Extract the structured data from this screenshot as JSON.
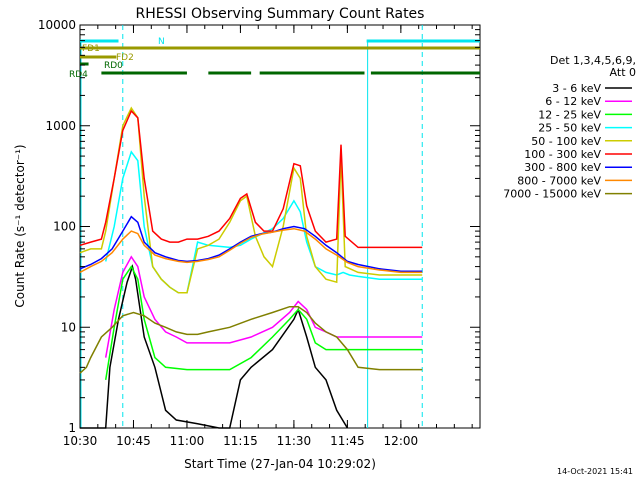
{
  "chart_data": {
    "type": "line",
    "title": "RHESSI Observing Summary Count Rates",
    "xlabel": "Start Time (27-Jan-04 10:29:02)",
    "ylabel": "Count Rate (s⁻¹ detector⁻¹)",
    "yscale": "log",
    "ylim": [
      1,
      10000
    ],
    "xlim_minutes": [
      10.5,
      12.37
    ],
    "x_ticks": [
      {
        "t": 10.5,
        "label": "10:30"
      },
      {
        "t": 10.75,
        "label": "10:45"
      },
      {
        "t": 11.0,
        "label": "11:00"
      },
      {
        "t": 11.25,
        "label": "11:15"
      },
      {
        "t": 11.5,
        "label": "11:30"
      },
      {
        "t": 11.75,
        "label": "11:45"
      },
      {
        "t": 12.0,
        "label": "12:00"
      }
    ],
    "y_ticks": [
      {
        "v": 1,
        "label": "1"
      },
      {
        "v": 10,
        "label": "10"
      },
      {
        "v": 100,
        "label": "100"
      },
      {
        "v": 1000,
        "label": "1000"
      },
      {
        "v": 10000,
        "label": "10000"
      }
    ],
    "legend_title": [
      "Det 1,3,4,5,6,9,",
      "Att 0"
    ],
    "legend_position": "right",
    "series": [
      {
        "name": "3 - 6 keV",
        "color": "#000000",
        "points": [
          [
            10.5,
            1
          ],
          [
            10.62,
            1
          ],
          [
            10.64,
            4
          ],
          [
            10.68,
            12
          ],
          [
            10.72,
            28
          ],
          [
            10.745,
            40
          ],
          [
            10.76,
            30
          ],
          [
            10.8,
            8
          ],
          [
            10.85,
            4
          ],
          [
            10.9,
            1.5
          ],
          [
            10.95,
            1.2
          ],
          [
            11.05,
            1.1
          ],
          [
            11.15,
            1
          ],
          [
            11.2,
            1
          ],
          [
            11.25,
            3
          ],
          [
            11.3,
            4
          ],
          [
            11.4,
            6
          ],
          [
            11.5,
            12
          ],
          [
            11.52,
            15
          ],
          [
            11.56,
            8
          ],
          [
            11.6,
            4
          ],
          [
            11.65,
            3
          ],
          [
            11.7,
            1.5
          ],
          [
            11.75,
            1
          ]
        ]
      },
      {
        "name": "6 - 12 keV",
        "color": "#ff00ff",
        "points": [
          [
            10.62,
            5
          ],
          [
            10.66,
            15
          ],
          [
            10.7,
            35
          ],
          [
            10.74,
            50
          ],
          [
            10.77,
            40
          ],
          [
            10.8,
            20
          ],
          [
            10.85,
            12
          ],
          [
            10.9,
            9
          ],
          [
            10.95,
            8
          ],
          [
            11.0,
            7
          ],
          [
            11.1,
            7
          ],
          [
            11.2,
            7
          ],
          [
            11.3,
            8
          ],
          [
            11.4,
            10
          ],
          [
            11.48,
            14
          ],
          [
            11.52,
            18
          ],
          [
            11.56,
            15
          ],
          [
            11.6,
            10
          ],
          [
            11.65,
            9
          ],
          [
            11.7,
            8
          ],
          [
            11.8,
            8
          ],
          [
            11.9,
            8
          ],
          [
            12.0,
            8
          ],
          [
            12.1,
            8
          ]
        ]
      },
      {
        "name": "12 - 25 keV",
        "color": "#00ff00",
        "points": [
          [
            10.62,
            3
          ],
          [
            10.66,
            10
          ],
          [
            10.7,
            30
          ],
          [
            10.74,
            40
          ],
          [
            10.77,
            30
          ],
          [
            10.8,
            12
          ],
          [
            10.85,
            5
          ],
          [
            10.9,
            4
          ],
          [
            11.0,
            3.8
          ],
          [
            11.1,
            3.8
          ],
          [
            11.2,
            3.8
          ],
          [
            11.3,
            5
          ],
          [
            11.4,
            8
          ],
          [
            11.48,
            12
          ],
          [
            11.52,
            15
          ],
          [
            11.56,
            12
          ],
          [
            11.6,
            7
          ],
          [
            11.65,
            6
          ],
          [
            11.7,
            6
          ],
          [
            11.8,
            6
          ],
          [
            11.9,
            6
          ],
          [
            12.0,
            6
          ],
          [
            12.1,
            6
          ]
        ]
      },
      {
        "name": "25 - 50 keV",
        "color": "#00ffff",
        "points": [
          [
            10.62,
            45
          ],
          [
            10.66,
            100
          ],
          [
            10.7,
            300
          ],
          [
            10.74,
            550
          ],
          [
            10.77,
            450
          ],
          [
            10.8,
            100
          ],
          [
            10.84,
            40
          ],
          [
            10.88,
            30
          ],
          [
            10.92,
            25
          ],
          [
            10.96,
            22
          ],
          [
            11.0,
            22
          ],
          [
            11.05,
            70
          ],
          [
            11.1,
            65
          ],
          [
            11.2,
            62
          ],
          [
            11.25,
            65
          ],
          [
            11.3,
            75
          ],
          [
            11.4,
            95
          ],
          [
            11.45,
            120
          ],
          [
            11.5,
            180
          ],
          [
            11.53,
            140
          ],
          [
            11.56,
            70
          ],
          [
            11.6,
            40
          ],
          [
            11.65,
            35
          ],
          [
            11.7,
            33
          ],
          [
            11.73,
            35
          ],
          [
            11.76,
            33
          ],
          [
            11.8,
            32
          ],
          [
            11.9,
            30
          ],
          [
            12.0,
            30
          ],
          [
            12.1,
            30
          ]
        ]
      },
      {
        "name": "50 - 100 keV",
        "color": "#cccc00",
        "points": [
          [
            10.5,
            55
          ],
          [
            10.55,
            60
          ],
          [
            10.6,
            60
          ],
          [
            10.62,
            90
          ],
          [
            10.66,
            300
          ],
          [
            10.7,
            1000
          ],
          [
            10.74,
            1500
          ],
          [
            10.77,
            1200
          ],
          [
            10.8,
            200
          ],
          [
            10.84,
            40
          ],
          [
            10.88,
            30
          ],
          [
            10.92,
            25
          ],
          [
            10.96,
            22
          ],
          [
            11.0,
            22
          ],
          [
            11.05,
            60
          ],
          [
            11.1,
            65
          ],
          [
            11.15,
            75
          ],
          [
            11.2,
            110
          ],
          [
            11.25,
            180
          ],
          [
            11.28,
            200
          ],
          [
            11.32,
            80
          ],
          [
            11.36,
            50
          ],
          [
            11.4,
            40
          ],
          [
            11.45,
            100
          ],
          [
            11.5,
            380
          ],
          [
            11.53,
            300
          ],
          [
            11.56,
            80
          ],
          [
            11.6,
            40
          ],
          [
            11.65,
            30
          ],
          [
            11.7,
            28
          ],
          [
            11.72,
            500
          ],
          [
            11.74,
            40
          ],
          [
            11.8,
            35
          ],
          [
            11.9,
            33
          ],
          [
            12.0,
            33
          ],
          [
            12.1,
            33
          ]
        ]
      },
      {
        "name": "100 - 300 keV",
        "color": "#ff0000",
        "points": [
          [
            10.5,
            65
          ],
          [
            10.55,
            70
          ],
          [
            10.6,
            75
          ],
          [
            10.62,
            110
          ],
          [
            10.66,
            300
          ],
          [
            10.7,
            900
          ],
          [
            10.74,
            1400
          ],
          [
            10.77,
            1200
          ],
          [
            10.8,
            300
          ],
          [
            10.84,
            90
          ],
          [
            10.88,
            75
          ],
          [
            10.92,
            70
          ],
          [
            10.96,
            70
          ],
          [
            11.0,
            75
          ],
          [
            11.05,
            75
          ],
          [
            11.1,
            80
          ],
          [
            11.15,
            90
          ],
          [
            11.2,
            120
          ],
          [
            11.25,
            190
          ],
          [
            11.28,
            210
          ],
          [
            11.32,
            110
          ],
          [
            11.36,
            90
          ],
          [
            11.4,
            90
          ],
          [
            11.45,
            150
          ],
          [
            11.5,
            420
          ],
          [
            11.53,
            400
          ],
          [
            11.56,
            160
          ],
          [
            11.6,
            90
          ],
          [
            11.65,
            70
          ],
          [
            11.7,
            75
          ],
          [
            11.72,
            650
          ],
          [
            11.74,
            80
          ],
          [
            11.8,
            62
          ],
          [
            11.9,
            62
          ],
          [
            12.0,
            62
          ],
          [
            12.1,
            62
          ]
        ]
      },
      {
        "name": "300 - 800 keV",
        "color": "#0000ff",
        "points": [
          [
            10.5,
            38
          ],
          [
            10.55,
            42
          ],
          [
            10.6,
            48
          ],
          [
            10.65,
            60
          ],
          [
            10.7,
            90
          ],
          [
            10.74,
            125
          ],
          [
            10.77,
            110
          ],
          [
            10.8,
            70
          ],
          [
            10.85,
            55
          ],
          [
            10.9,
            50
          ],
          [
            10.96,
            46
          ],
          [
            11.0,
            45
          ],
          [
            11.05,
            46
          ],
          [
            11.1,
            48
          ],
          [
            11.15,
            52
          ],
          [
            11.2,
            60
          ],
          [
            11.25,
            70
          ],
          [
            11.3,
            80
          ],
          [
            11.35,
            85
          ],
          [
            11.4,
            88
          ],
          [
            11.45,
            95
          ],
          [
            11.5,
            100
          ],
          [
            11.55,
            95
          ],
          [
            11.6,
            80
          ],
          [
            11.65,
            65
          ],
          [
            11.7,
            55
          ],
          [
            11.75,
            45
          ],
          [
            11.8,
            42
          ],
          [
            11.9,
            38
          ],
          [
            12.0,
            36
          ],
          [
            12.1,
            36
          ]
        ]
      },
      {
        "name": "800 - 7000 keV",
        "color": "#ff8800",
        "points": [
          [
            10.5,
            35
          ],
          [
            10.55,
            40
          ],
          [
            10.6,
            45
          ],
          [
            10.65,
            55
          ],
          [
            10.7,
            75
          ],
          [
            10.74,
            90
          ],
          [
            10.77,
            85
          ],
          [
            10.8,
            65
          ],
          [
            10.85,
            52
          ],
          [
            10.9,
            48
          ],
          [
            10.96,
            45
          ],
          [
            11.0,
            44
          ],
          [
            11.05,
            45
          ],
          [
            11.1,
            47
          ],
          [
            11.15,
            50
          ],
          [
            11.2,
            58
          ],
          [
            11.25,
            68
          ],
          [
            11.3,
            78
          ],
          [
            11.35,
            84
          ],
          [
            11.4,
            88
          ],
          [
            11.45,
            92
          ],
          [
            11.5,
            95
          ],
          [
            11.55,
            90
          ],
          [
            11.6,
            75
          ],
          [
            11.65,
            60
          ],
          [
            11.7,
            52
          ],
          [
            11.75,
            44
          ],
          [
            11.8,
            40
          ],
          [
            11.9,
            37
          ],
          [
            12.0,
            35
          ],
          [
            12.1,
            35
          ]
        ]
      },
      {
        "name": "7000 - 15000 keV",
        "color": "#808000",
        "points": [
          [
            10.5,
            3.5
          ],
          [
            10.53,
            4
          ],
          [
            10.55,
            5
          ],
          [
            10.6,
            8
          ],
          [
            10.65,
            10
          ],
          [
            10.7,
            13
          ],
          [
            10.75,
            14
          ],
          [
            10.8,
            13
          ],
          [
            10.85,
            11
          ],
          [
            10.9,
            10
          ],
          [
            10.95,
            9
          ],
          [
            11.0,
            8.5
          ],
          [
            11.05,
            8.5
          ],
          [
            11.1,
            9
          ],
          [
            11.2,
            10
          ],
          [
            11.3,
            12
          ],
          [
            11.4,
            14
          ],
          [
            11.48,
            16
          ],
          [
            11.52,
            16
          ],
          [
            11.56,
            14
          ],
          [
            11.6,
            11
          ],
          [
            11.65,
            9
          ],
          [
            11.7,
            8
          ],
          [
            11.75,
            6
          ],
          [
            11.8,
            4
          ],
          [
            11.9,
            3.8
          ],
          [
            12.0,
            3.8
          ],
          [
            12.1,
            3.8
          ]
        ]
      }
    ],
    "flags": [
      {
        "name": "N",
        "color": "#00e5ee",
        "segments": [
          [
            10.5,
            10.68
          ],
          [
            11.84,
            12.37
          ]
        ]
      },
      {
        "name": "FD1",
        "color": "#999900",
        "segments": [
          [
            10.5,
            12.37
          ]
        ]
      },
      {
        "name": "FD2",
        "color": "#999900",
        "segments": [
          [
            10.5,
            10.67
          ]
        ]
      },
      {
        "name": "RD0",
        "color": "#006600",
        "segments": [
          [
            10.5,
            10.54
          ]
        ]
      },
      {
        "name": "RD4",
        "color": "#006600",
        "segments": [
          [
            10.6,
            11.0
          ],
          [
            11.1,
            11.3
          ],
          [
            11.34,
            11.83
          ],
          [
            11.86,
            12.37
          ]
        ]
      }
    ],
    "saa_markers": [
      10.7,
      12.1
    ],
    "annotations": [
      {
        "text": "N"
      },
      {
        "text": "FD1"
      },
      {
        "text": "FD2"
      },
      {
        "text": "RD0"
      },
      {
        "text": "RD4"
      }
    ],
    "timestamp": "14-Oct-2021 15:41"
  }
}
